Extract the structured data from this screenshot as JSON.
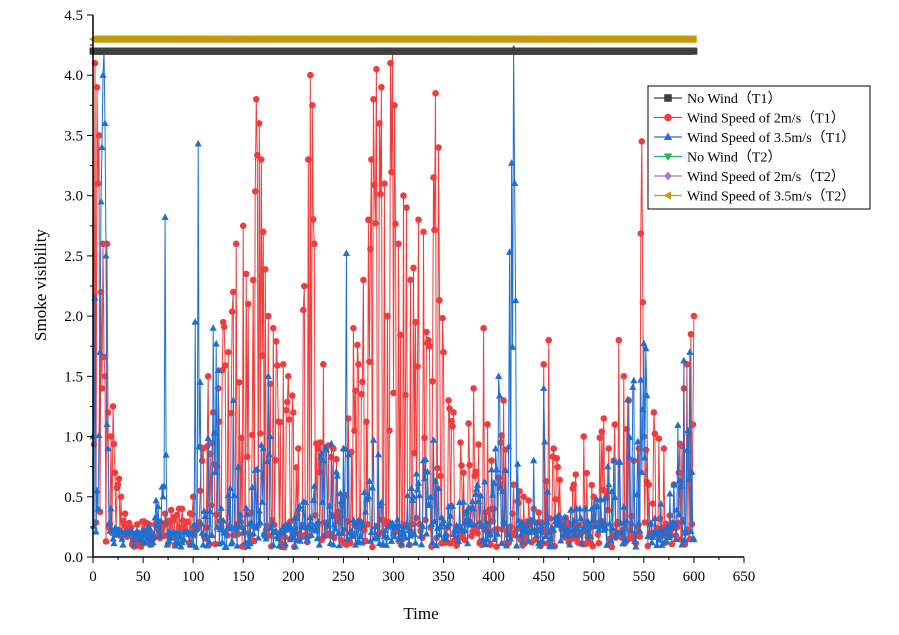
{
  "chart_data": {
    "type": "line",
    "xlabel": "Time",
    "ylabel": "Smoke visibility",
    "xlim": [
      0,
      650
    ],
    "ylim": [
      0,
      4.5
    ],
    "x_ticks": [
      0,
      50,
      100,
      150,
      200,
      250,
      300,
      350,
      400,
      450,
      500,
      550,
      600,
      650
    ],
    "y_ticks": [
      "0.0",
      "0.5",
      "1.0",
      "1.5",
      "2.0",
      "2.5",
      "3.0",
      "3.5",
      "4.0",
      "4.5"
    ],
    "legend_position": "right, upper",
    "series": [
      {
        "name": "No Wind（T1）",
        "color": "#404040",
        "marker": "square",
        "pattern": "constant",
        "x_range": [
          0,
          600
        ],
        "value": 4.2
      },
      {
        "name": "Wind Speed of 2m/s（T1）",
        "color": "#f03c3c",
        "marker": "circle",
        "pattern": "noisy",
        "x_range": [
          0,
          600
        ],
        "points": [
          [
            0,
            4.2
          ],
          [
            2,
            4.1
          ],
          [
            4,
            3.9
          ],
          [
            5,
            3.1
          ],
          [
            6,
            3.5
          ],
          [
            8,
            2.2
          ],
          [
            9,
            1.4
          ],
          [
            10,
            2.6
          ],
          [
            12,
            1.5
          ],
          [
            14,
            2.6
          ],
          [
            15,
            1.2
          ],
          [
            18,
            1.0
          ],
          [
            20,
            1.25
          ],
          [
            22,
            0.7
          ],
          [
            25,
            0.6
          ],
          [
            28,
            0.5
          ],
          [
            30,
            0.3
          ],
          [
            35,
            0.2
          ],
          [
            40,
            0.15
          ],
          [
            50,
            0.2
          ],
          [
            60,
            0.15
          ],
          [
            70,
            0.25
          ],
          [
            80,
            0.3
          ],
          [
            90,
            0.3
          ],
          [
            95,
            0.2
          ],
          [
            100,
            0.5
          ],
          [
            110,
            0.9
          ],
          [
            115,
            1.5
          ],
          [
            120,
            1.2
          ],
          [
            125,
            1.4
          ],
          [
            130,
            1.95
          ],
          [
            135,
            1.7
          ],
          [
            140,
            2.2
          ],
          [
            143,
            2.6
          ],
          [
            150,
            2.75
          ],
          [
            155,
            2.1
          ],
          [
            160,
            2.3
          ],
          [
            163,
            3.8
          ],
          [
            166,
            3.6
          ],
          [
            168,
            3.3
          ],
          [
            170,
            2.7
          ],
          [
            175,
            2.0
          ],
          [
            180,
            1.9
          ],
          [
            190,
            1.6
          ],
          [
            200,
            1.2
          ],
          [
            205,
            0.9
          ],
          [
            210,
            2.05
          ],
          [
            215,
            3.3
          ],
          [
            217,
            4.0
          ],
          [
            219,
            3.75
          ],
          [
            221,
            2.6
          ],
          [
            225,
            0.9
          ],
          [
            230,
            1.6
          ],
          [
            240,
            0.9
          ],
          [
            250,
            0.5
          ],
          [
            255,
            1.15
          ],
          [
            260,
            1.9
          ],
          [
            265,
            1.6
          ],
          [
            270,
            2.3
          ],
          [
            275,
            2.8
          ],
          [
            278,
            3.3
          ],
          [
            280,
            3.8
          ],
          [
            283,
            4.05
          ],
          [
            286,
            3.6
          ],
          [
            288,
            3.9
          ],
          [
            291,
            3.1
          ],
          [
            294,
            2.0
          ],
          [
            297,
            4.1
          ],
          [
            299,
            4.2
          ],
          [
            301,
            3.75
          ],
          [
            305,
            2.6
          ],
          [
            310,
            3.0
          ],
          [
            313,
            2.9
          ],
          [
            317,
            2.3
          ],
          [
            320,
            2.4
          ],
          [
            325,
            2.8
          ],
          [
            330,
            2.7
          ],
          [
            335,
            1.8
          ],
          [
            340,
            3.15
          ],
          [
            342,
            3.85
          ],
          [
            345,
            3.4
          ],
          [
            350,
            1.7
          ],
          [
            355,
            1.3
          ],
          [
            360,
            1.2
          ],
          [
            370,
            0.7
          ],
          [
            380,
            1.4
          ],
          [
            390,
            1.9
          ],
          [
            400,
            0.4
          ],
          [
            410,
            1.3
          ],
          [
            420,
            0.6
          ],
          [
            430,
            0.5
          ],
          [
            440,
            0.4
          ],
          [
            450,
            1.6
          ],
          [
            455,
            1.8
          ],
          [
            460,
            0.9
          ],
          [
            470,
            0.3
          ],
          [
            480,
            0.6
          ],
          [
            490,
            1.0
          ],
          [
            500,
            0.5
          ],
          [
            510,
            1.15
          ],
          [
            515,
            0.9
          ],
          [
            520,
            0.8
          ],
          [
            525,
            1.8
          ],
          [
            530,
            1.5
          ],
          [
            535,
            1.3
          ],
          [
            540,
            0.8
          ],
          [
            545,
            0.9
          ],
          [
            548,
            3.45
          ],
          [
            550,
            1.0
          ],
          [
            555,
            0.6
          ],
          [
            560,
            1.2
          ],
          [
            570,
            0.9
          ],
          [
            580,
            0.6
          ],
          [
            585,
            0.7
          ],
          [
            590,
            1.4
          ],
          [
            593,
            1.6
          ],
          [
            597,
            1.85
          ],
          [
            600,
            2.0
          ]
        ]
      },
      {
        "name": "Wind Speed of 3.5m/s（T1）",
        "color": "#1f6fd1",
        "marker": "triangle-up",
        "pattern": "noisy",
        "x_range": [
          0,
          600
        ],
        "points": [
          [
            0,
            1.0
          ],
          [
            2,
            2.15
          ],
          [
            4,
            0.55
          ],
          [
            5,
            0.4
          ],
          [
            7,
            1.7
          ],
          [
            8,
            2.95
          ],
          [
            9,
            3.4
          ],
          [
            10,
            4.0
          ],
          [
            11,
            4.2
          ],
          [
            12,
            3.6
          ],
          [
            13,
            2.5
          ],
          [
            14,
            1.1
          ],
          [
            15,
            0.9
          ],
          [
            18,
            0.4
          ],
          [
            20,
            0.15
          ],
          [
            30,
            0.1
          ],
          [
            50,
            0.12
          ],
          [
            70,
            0.5
          ],
          [
            72,
            2.82
          ],
          [
            74,
            0.1
          ],
          [
            100,
            0.1
          ],
          [
            102,
            1.95
          ],
          [
            105,
            3.43
          ],
          [
            107,
            1.45
          ],
          [
            110,
            0.1
          ],
          [
            120,
            1.9
          ],
          [
            125,
            1.55
          ],
          [
            130,
            0.3
          ],
          [
            140,
            1.3
          ],
          [
            150,
            0.2
          ],
          [
            170,
            0.9
          ],
          [
            175,
            1.5
          ],
          [
            180,
            0.1
          ],
          [
            200,
            0.2
          ],
          [
            230,
            0.8
          ],
          [
            250,
            0.9
          ],
          [
            253,
            2.52
          ],
          [
            256,
            0.2
          ],
          [
            275,
            0.5
          ],
          [
            280,
            0.97
          ],
          [
            285,
            0.85
          ],
          [
            290,
            0.1
          ],
          [
            300,
            0.2
          ],
          [
            320,
            0.5
          ],
          [
            330,
            0.8
          ],
          [
            340,
            0.97
          ],
          [
            350,
            0.3
          ],
          [
            380,
            0.4
          ],
          [
            405,
            1.5
          ],
          [
            410,
            0.3
          ],
          [
            418,
            3.27
          ],
          [
            420,
            4.22
          ],
          [
            422,
            2.13
          ],
          [
            425,
            0.3
          ],
          [
            440,
            0.8
          ],
          [
            450,
            1.4
          ],
          [
            455,
            0.2
          ],
          [
            480,
            0.3
          ],
          [
            500,
            0.3
          ],
          [
            520,
            0.8
          ],
          [
            552,
            1.73
          ],
          [
            560,
            0.2
          ],
          [
            580,
            0.6
          ],
          [
            590,
            1.63
          ],
          [
            594,
            1.05
          ],
          [
            596,
            1.7
          ],
          [
            600,
            0.15
          ]
        ]
      },
      {
        "name": "No Wind（T2）",
        "color": "#1db35a",
        "marker": "triangle-down",
        "pattern": "constant",
        "x_range": [
          0,
          600
        ],
        "value": 4.3
      },
      {
        "name": "Wind Speed of 2m/s（T2）",
        "color": "#a77ad9",
        "marker": "diamond",
        "pattern": "constant",
        "x_range": [
          0,
          600
        ],
        "value": 4.3
      },
      {
        "name": "Wind Speed of 3.5m/s（T2）",
        "color": "#c8980e",
        "marker": "triangle-left",
        "pattern": "constant",
        "x_range": [
          0,
          600
        ],
        "value": 4.3
      }
    ]
  }
}
